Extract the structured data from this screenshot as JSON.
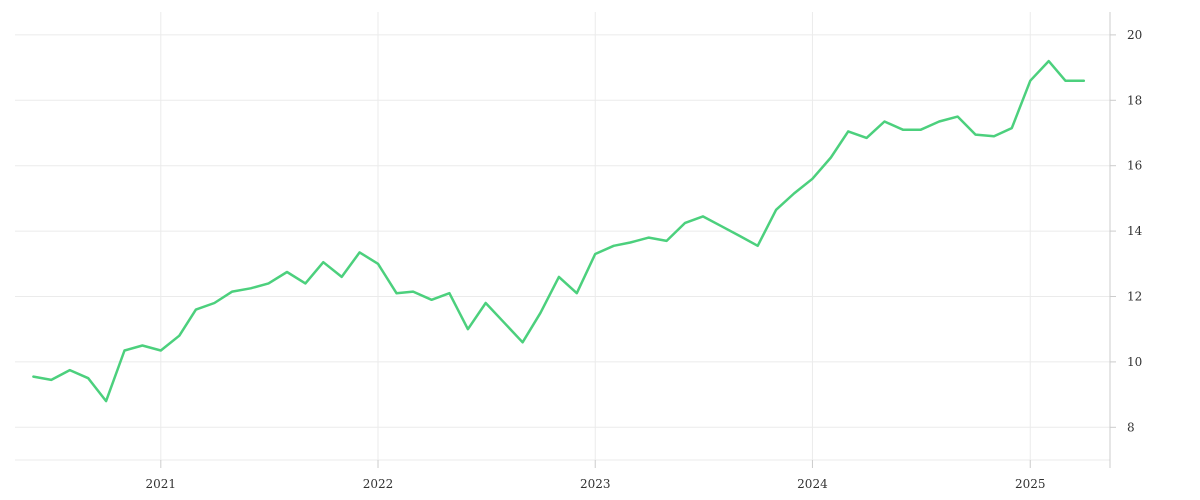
{
  "chart_data": {
    "type": "line",
    "title": "",
    "xlabel": "",
    "ylabel": "",
    "x_ticks": [
      "2021",
      "2022",
      "2023",
      "2024",
      "2025"
    ],
    "y_ticks": [
      8,
      10,
      12,
      14,
      16,
      18,
      20
    ],
    "ylim": [
      7.0,
      20.7
    ],
    "xlim": [
      "2020-05-01",
      "2025-05-15"
    ],
    "y_axis_side": "right",
    "grid": true,
    "legend": "none",
    "series": [
      {
        "color": "#4cd07d",
        "x": [
          "2020-06-01",
          "2020-07-01",
          "2020-08-01",
          "2020-09-01",
          "2020-10-01",
          "2020-11-01",
          "2020-12-01",
          "2021-01-01",
          "2021-02-01",
          "2021-03-01",
          "2021-04-01",
          "2021-05-01",
          "2021-06-01",
          "2021-07-01",
          "2021-08-01",
          "2021-09-01",
          "2021-10-01",
          "2021-11-01",
          "2021-12-01",
          "2022-01-01",
          "2022-02-01",
          "2022-03-01",
          "2022-04-01",
          "2022-05-01",
          "2022-06-01",
          "2022-07-01",
          "2022-08-01",
          "2022-09-01",
          "2022-10-01",
          "2022-11-01",
          "2022-12-01",
          "2023-01-01",
          "2023-02-01",
          "2023-03-01",
          "2023-04-01",
          "2023-05-01",
          "2023-06-01",
          "2023-07-01",
          "2023-08-01",
          "2023-09-01",
          "2023-10-01",
          "2023-11-01",
          "2023-12-01",
          "2024-01-01",
          "2024-02-01",
          "2024-03-01",
          "2024-04-01",
          "2024-05-01",
          "2024-06-01",
          "2024-07-01",
          "2024-08-01",
          "2024-09-01",
          "2024-10-01",
          "2024-11-01",
          "2024-12-01",
          "2025-01-01",
          "2025-02-01",
          "2025-03-01",
          "2025-04-01"
        ],
        "values": [
          9.55,
          9.45,
          9.75,
          9.5,
          8.8,
          10.35,
          10.5,
          10.35,
          10.8,
          11.6,
          11.8,
          12.15,
          12.25,
          12.4,
          12.75,
          12.4,
          13.05,
          12.6,
          13.35,
          13.0,
          12.1,
          12.15,
          11.9,
          12.1,
          11.0,
          11.8,
          11.2,
          10.6,
          11.5,
          12.6,
          12.1,
          13.3,
          13.55,
          13.65,
          13.8,
          13.7,
          14.25,
          14.45,
          14.15,
          13.85,
          13.55,
          14.65,
          15.15,
          15.6,
          16.25,
          17.05,
          16.85,
          17.35,
          17.1,
          17.1,
          17.35,
          17.5,
          16.95,
          16.9,
          17.15,
          18.6,
          19.2,
          18.6,
          18.6
        ]
      }
    ]
  }
}
